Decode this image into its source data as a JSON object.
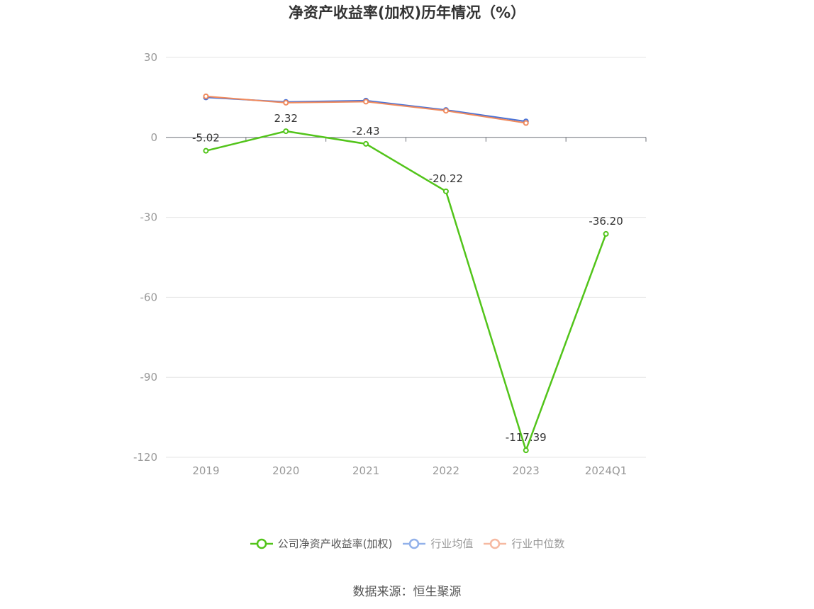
{
  "title": "净资产收益率(加权)历年情况（%）",
  "source": "数据来源：恒生聚源",
  "chart_data": {
    "type": "line",
    "title": "净资产收益率(加权)历年情况（%）",
    "categories": [
      "2019",
      "2020",
      "2021",
      "2022",
      "2023",
      "2024Q1"
    ],
    "ylim": [
      -120,
      30
    ],
    "yticks": [
      30,
      0,
      -30,
      -60,
      -90,
      -120
    ],
    "grid": true,
    "legend_position": "bottom",
    "series": [
      {
        "name": "公司净资产收益率(加权)",
        "color": "#52c41a",
        "values": [
          -5.02,
          2.32,
          -2.43,
          -20.22,
          -117.39,
          -36.2
        ],
        "labels": [
          "-5.02",
          "2.32",
          "-2.43",
          "-20.22",
          "-117.39",
          "-36.20"
        ]
      },
      {
        "name": "行业均值",
        "color": "#4a72d6",
        "values": [
          15.0,
          13.3,
          13.8,
          10.3,
          6.0,
          null
        ]
      },
      {
        "name": "行业中位数",
        "color": "#f08a5d",
        "values": [
          15.4,
          13.0,
          13.4,
          10.0,
          5.4,
          null
        ]
      }
    ]
  }
}
